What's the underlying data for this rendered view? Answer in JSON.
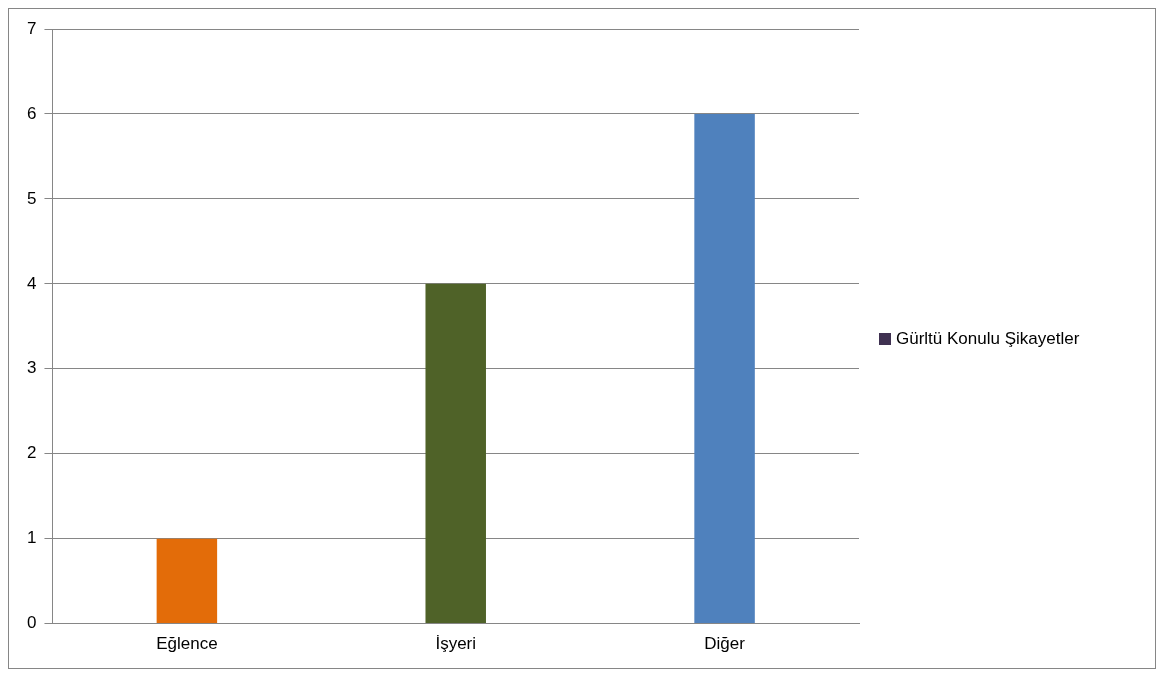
{
  "chart_data": {
    "type": "bar",
    "categories": [
      "Eğlence",
      "İşyeri",
      "Diğer"
    ],
    "series": [
      {
        "name": "Gürltü Konulu Şikayetler",
        "color": "#3f3151",
        "colors": [
          "#e36c09",
          "#4f6228",
          "#4f81bd"
        ],
        "values": [
          1,
          4,
          6
        ]
      }
    ],
    "ylim": [
      0,
      7
    ],
    "yticks": [
      0,
      1,
      2,
      3,
      4,
      5,
      6,
      7
    ],
    "grid": "y",
    "legend": "right"
  }
}
